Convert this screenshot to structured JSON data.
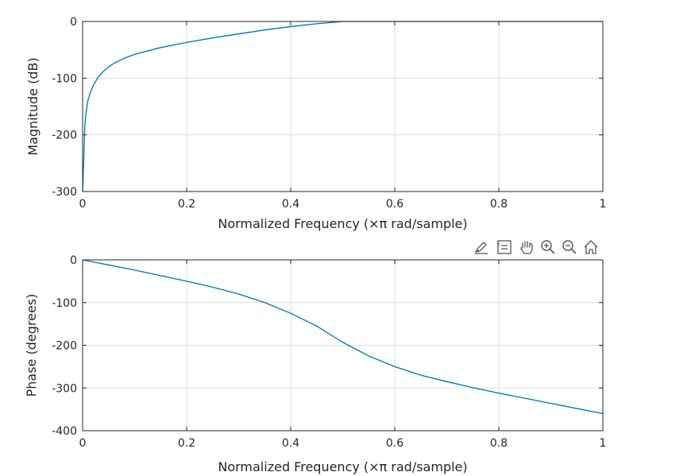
{
  "chart_data": [
    {
      "type": "line",
      "xlabel": "Normalized Frequency  (×π rad/sample)",
      "ylabel": "Magnitude (dB)",
      "xlim": [
        0,
        1
      ],
      "ylim": [
        -300,
        0
      ],
      "xticks": [
        0,
        0.2,
        0.4,
        0.6,
        0.8,
        1
      ],
      "xtick_labels": [
        "0",
        "0.2",
        "0.4",
        "0.6",
        "0.8",
        "1"
      ],
      "yticks": [
        0,
        -100,
        -200,
        -300
      ],
      "ytick_labels": [
        "0",
        "-100",
        "-200",
        "-300"
      ],
      "grid": true,
      "line_color": "#0072bd",
      "series": [
        {
          "x": [
            0,
            0.002,
            0.004,
            0.006,
            0.01,
            0.015,
            0.02,
            0.03,
            0.04,
            0.05,
            0.06,
            0.08,
            0.1,
            0.15,
            0.2,
            0.25,
            0.3,
            0.35,
            0.4,
            0.45,
            0.5,
            0.6,
            0.7,
            0.8,
            0.9,
            1
          ],
          "y": [
            -300,
            -250,
            -190,
            -165,
            -140,
            -125,
            -114,
            -98,
            -88,
            -80,
            -74,
            -65,
            -58,
            -46,
            -37,
            -29,
            -22,
            -15,
            -9,
            -4,
            0,
            0,
            0,
            0,
            0,
            0
          ]
        }
      ]
    },
    {
      "type": "line",
      "xlabel": "Normalized Frequency  (×π rad/sample)",
      "ylabel": "Phase (degrees)",
      "xlim": [
        0,
        1
      ],
      "ylim": [
        -400,
        0
      ],
      "xticks": [
        0,
        0.2,
        0.4,
        0.6,
        0.8,
        1
      ],
      "xtick_labels": [
        "0",
        "0.2",
        "0.4",
        "0.6",
        "0.8",
        "1"
      ],
      "yticks": [
        0,
        -100,
        -200,
        -300,
        -400
      ],
      "ytick_labels": [
        "0",
        "-100",
        "-200",
        "-300",
        "-400"
      ],
      "grid": true,
      "line_color": "#0072bd",
      "series": [
        {
          "x": [
            0,
            0.05,
            0.1,
            0.15,
            0.2,
            0.25,
            0.3,
            0.35,
            0.4,
            0.45,
            0.5,
            0.55,
            0.6,
            0.65,
            0.7,
            0.75,
            0.8,
            0.85,
            0.9,
            0.95,
            1
          ],
          "y": [
            0,
            -12,
            -24,
            -37,
            -50,
            -64,
            -80,
            -100,
            -125,
            -155,
            -193,
            -225,
            -250,
            -270,
            -285,
            -299,
            -312,
            -324,
            -336,
            -348,
            -360
          ]
        }
      ]
    }
  ],
  "toolbar": {
    "icons": [
      "brush-icon",
      "legend-icon",
      "pan-hand-icon",
      "zoom-in-icon",
      "zoom-out-icon",
      "home-icon"
    ]
  }
}
